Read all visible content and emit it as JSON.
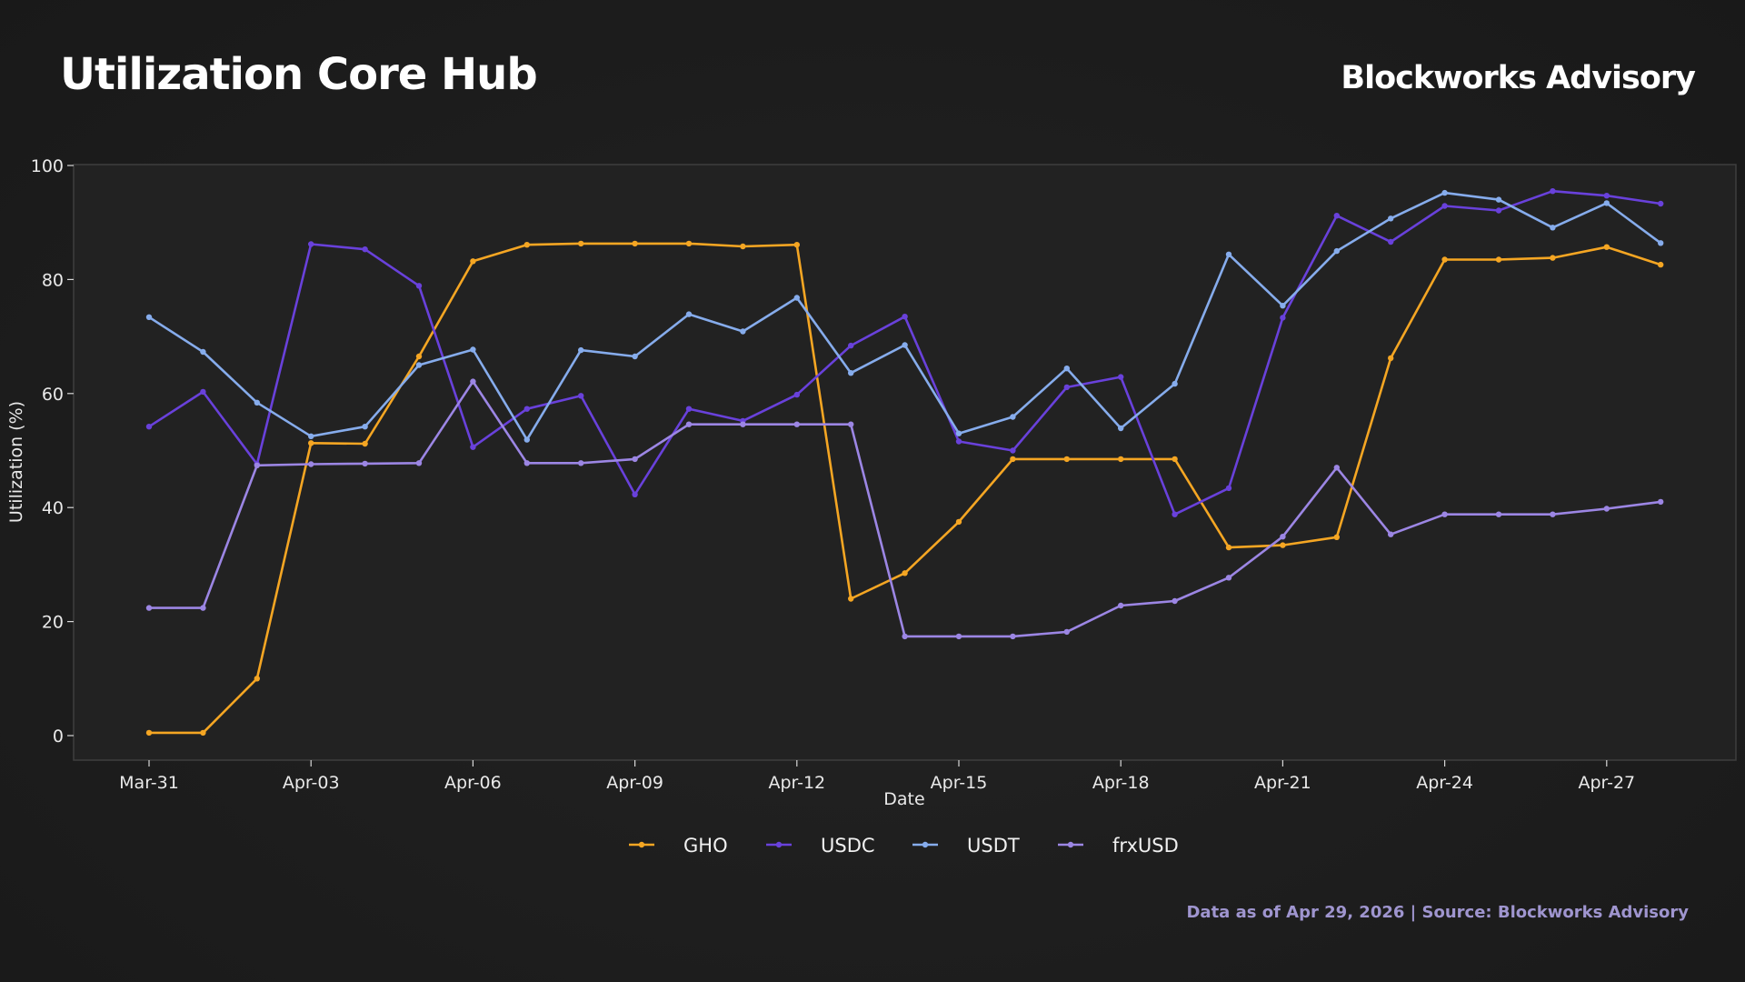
{
  "header": {
    "title": "Utilization Core Hub",
    "brand": "Blockworks Advisory"
  },
  "footer": {
    "note": "Data as of Apr 29, 2026 | Source: Blockworks Advisory"
  },
  "chart_data": {
    "type": "line",
    "title": "Utilization Core Hub",
    "xlabel": "Date",
    "ylabel": "Utilization (%)",
    "ylim": [
      -4,
      100
    ],
    "yticks": [
      0,
      20,
      40,
      60,
      80,
      100
    ],
    "xticks": [
      "Mar-31",
      "Apr-03",
      "Apr-06",
      "Apr-09",
      "Apr-12",
      "Apr-15",
      "Apr-18",
      "Apr-21",
      "Apr-24",
      "Apr-27"
    ],
    "x": [
      "Mar-31",
      "Apr-01",
      "Apr-02",
      "Apr-03",
      "Apr-04",
      "Apr-05",
      "Apr-06",
      "Apr-07",
      "Apr-08",
      "Apr-09",
      "Apr-10",
      "Apr-11",
      "Apr-12",
      "Apr-13",
      "Apr-14",
      "Apr-15",
      "Apr-16",
      "Apr-17",
      "Apr-18",
      "Apr-19",
      "Apr-20",
      "Apr-21",
      "Apr-22",
      "Apr-23",
      "Apr-24",
      "Apr-25",
      "Apr-26",
      "Apr-27",
      "Apr-28"
    ],
    "grid": false,
    "legend_position": "bottom-center",
    "series": [
      {
        "name": "GHO",
        "color": "#f5a623",
        "values": [
          0.5,
          0.5,
          10,
          51.3,
          51.2,
          66.5,
          83.2,
          86.1,
          86.3,
          86.3,
          86.3,
          85.8,
          86.1,
          24,
          28.5,
          37.5,
          48.5,
          48.5,
          48.5,
          48.5,
          33,
          33.4,
          34.8,
          66.2,
          83.5,
          83.5,
          83.8,
          85.7,
          82.6
        ]
      },
      {
        "name": "USDC",
        "color": "#6941db",
        "values": [
          54.2,
          60.3,
          47.6,
          86.2,
          85.3,
          78.9,
          50.6,
          57.3,
          59.6,
          42.3,
          57.3,
          55.2,
          59.8,
          68.4,
          73.5,
          51.6,
          50,
          61.1,
          62.9,
          38.8,
          43.4,
          73.3,
          91.2,
          86.6,
          92.9,
          92.1,
          95.5,
          94.7,
          93.3
        ]
      },
      {
        "name": "USDT",
        "color": "#86acec",
        "values": [
          73.4,
          67.3,
          58.4,
          52.5,
          54.2,
          65,
          67.7,
          51.9,
          67.6,
          66.5,
          73.9,
          70.9,
          76.8,
          63.6,
          68.5,
          53,
          55.9,
          64.4,
          53.9,
          61.7,
          84.4,
          75.4,
          85,
          90.7,
          95.2,
          94,
          89.1,
          93.4,
          86.4
        ]
      },
      {
        "name": "frxUSD",
        "color": "#9c86e4",
        "values": [
          22.4,
          22.4,
          47.4,
          47.6,
          47.7,
          47.8,
          62.1,
          47.8,
          47.8,
          48.5,
          54.6,
          54.6,
          54.6,
          54.6,
          17.4,
          17.4,
          17.4,
          18.2,
          22.8,
          23.6,
          27.7,
          34.9,
          47,
          35.3,
          38.8,
          38.8,
          38.8,
          39.8,
          41
        ]
      }
    ]
  }
}
